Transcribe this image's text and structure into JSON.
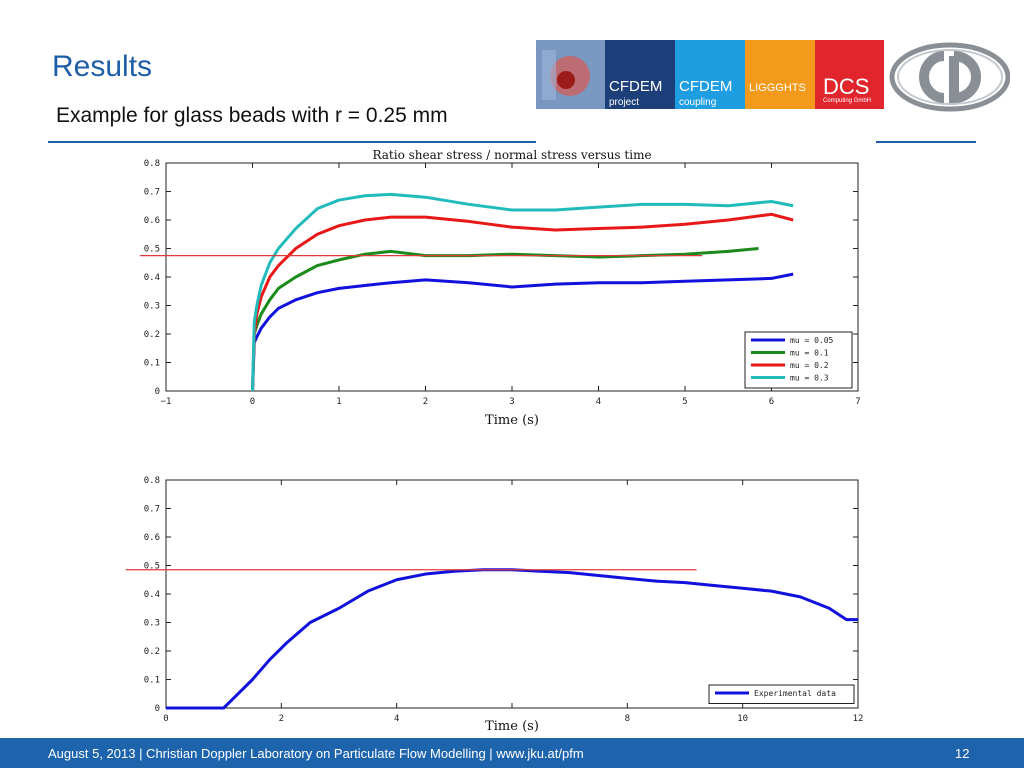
{
  "slide": {
    "title": "Results",
    "subtitle": "Example for glass beads with r = 0.25 mm",
    "footer_text": "August 5, 2013 | Christian Doppler Laboratory on Particulate Flow Modelling | www.jku.at/pfm",
    "page_number": "12",
    "colors": {
      "title": "#1f5fa8",
      "footer_bg": "#1e64ad",
      "rule": "#1f5fa8"
    }
  },
  "logos": [
    {
      "name": "cfdem-project-image",
      "main": "",
      "sub": "",
      "bg": "#6b86b0"
    },
    {
      "name": "cfdem-project-logo",
      "main": "CFDEM",
      "sub": "project",
      "bg": "#1c3f7a"
    },
    {
      "name": "cfdem-coupling-logo",
      "main": "CFDEM",
      "sub": "coupling",
      "bg": "#1e9ee0"
    },
    {
      "name": "liggghts-logo",
      "main": "LIGGGHTS",
      "sub": "",
      "bg": "#f39a1c"
    },
    {
      "name": "dcs-logo",
      "main": "DCS",
      "sub": "Computing GmbH",
      "bg": "#e0262c"
    }
  ],
  "chart_data": [
    {
      "type": "line",
      "title": "Ratio shear stress / normal stress versus time",
      "xlabel": "Time (s)",
      "ylabel": "",
      "xlim": [
        -1,
        7
      ],
      "ylim": [
        0,
        0.8
      ],
      "xticks": [
        "−1",
        "0",
        "1",
        "2",
        "3",
        "4",
        "5",
        "6",
        "7"
      ],
      "yticks": [
        "0",
        "0.1",
        "0.2",
        "0.3",
        "0.4",
        "0.5",
        "0.6",
        "0.7",
        "0.8"
      ],
      "legend_position": "bottom-right",
      "reference_line": {
        "y": 0.475,
        "x_range": [
          -1.3,
          5.2
        ],
        "color": "#e03a3a"
      },
      "series": [
        {
          "name": "mu = 0.05",
          "color": "#1111dd",
          "x": [
            0,
            0.02,
            0.05,
            0.1,
            0.2,
            0.3,
            0.5,
            0.75,
            1.0,
            1.3,
            1.6,
            2.0,
            2.5,
            3.0,
            3.5,
            4.0,
            4.5,
            5.0,
            5.5,
            6.0,
            6.25
          ],
          "y": [
            0,
            0.17,
            0.19,
            0.22,
            0.26,
            0.29,
            0.32,
            0.345,
            0.36,
            0.37,
            0.38,
            0.39,
            0.38,
            0.365,
            0.375,
            0.38,
            0.38,
            0.385,
            0.39,
            0.395,
            0.41
          ]
        },
        {
          "name": "mu = 0.1",
          "color": "#1a8a1a",
          "x": [
            0,
            0.02,
            0.05,
            0.1,
            0.2,
            0.3,
            0.5,
            0.75,
            1.0,
            1.3,
            1.6,
            2.0,
            2.5,
            3.0,
            3.5,
            4.0,
            4.5,
            5.0,
            5.5,
            5.85
          ],
          "y": [
            0,
            0.2,
            0.23,
            0.27,
            0.32,
            0.36,
            0.4,
            0.44,
            0.46,
            0.48,
            0.49,
            0.475,
            0.475,
            0.48,
            0.475,
            0.47,
            0.475,
            0.48,
            0.49,
            0.5
          ]
        },
        {
          "name": "mu = 0.2",
          "color": "#e81818",
          "x": [
            0,
            0.02,
            0.05,
            0.1,
            0.2,
            0.3,
            0.5,
            0.75,
            1.0,
            1.3,
            1.6,
            2.0,
            2.5,
            3.0,
            3.5,
            4.0,
            4.5,
            5.0,
            5.5,
            6.0,
            6.25
          ],
          "y": [
            0,
            0.2,
            0.27,
            0.33,
            0.4,
            0.44,
            0.5,
            0.55,
            0.58,
            0.6,
            0.61,
            0.61,
            0.595,
            0.575,
            0.565,
            0.57,
            0.575,
            0.585,
            0.6,
            0.62,
            0.6
          ]
        },
        {
          "name": "mu = 0.3",
          "color": "#22bbbb",
          "x": [
            0,
            0.02,
            0.05,
            0.1,
            0.2,
            0.3,
            0.5,
            0.75,
            1.0,
            1.3,
            1.6,
            2.0,
            2.5,
            3.0,
            3.5,
            4.0,
            4.5,
            5.0,
            5.5,
            6.0,
            6.25
          ],
          "y": [
            0,
            0.24,
            0.3,
            0.37,
            0.45,
            0.5,
            0.57,
            0.64,
            0.67,
            0.685,
            0.69,
            0.68,
            0.655,
            0.635,
            0.635,
            0.645,
            0.655,
            0.655,
            0.65,
            0.665,
            0.65
          ]
        }
      ]
    },
    {
      "type": "line",
      "title": "",
      "xlabel": "Time (s)",
      "ylabel": "",
      "xlim": [
        0,
        12
      ],
      "ylim": [
        0,
        0.8
      ],
      "xticks": [
        "0",
        "2",
        "4",
        "",
        "8",
        "10",
        "12"
      ],
      "yticks": [
        "0",
        "0.1",
        "0.2",
        "0.3",
        "0.4",
        "0.5",
        "0.6",
        "0.7",
        "0.8"
      ],
      "legend_position": "bottom-right",
      "reference_line": {
        "y": 0.485,
        "x_range": [
          -0.7,
          9.2
        ],
        "color": "#e03a3a"
      },
      "series": [
        {
          "name": "Experimental data",
          "color": "#1111dd",
          "x": [
            0,
            1.0,
            1.1,
            1.3,
            1.5,
            1.8,
            2.1,
            2.5,
            3.0,
            3.5,
            4.0,
            4.5,
            5.0,
            5.5,
            6.0,
            6.5,
            7.0,
            7.5,
            8.0,
            8.5,
            9.0,
            9.5,
            10.0,
            10.5,
            11.0,
            11.5,
            11.8,
            12.0
          ],
          "y": [
            0,
            0,
            0.02,
            0.06,
            0.1,
            0.17,
            0.23,
            0.3,
            0.35,
            0.41,
            0.45,
            0.47,
            0.48,
            0.485,
            0.485,
            0.48,
            0.475,
            0.465,
            0.455,
            0.445,
            0.44,
            0.43,
            0.42,
            0.41,
            0.39,
            0.35,
            0.31,
            0.31
          ]
        }
      ]
    }
  ]
}
